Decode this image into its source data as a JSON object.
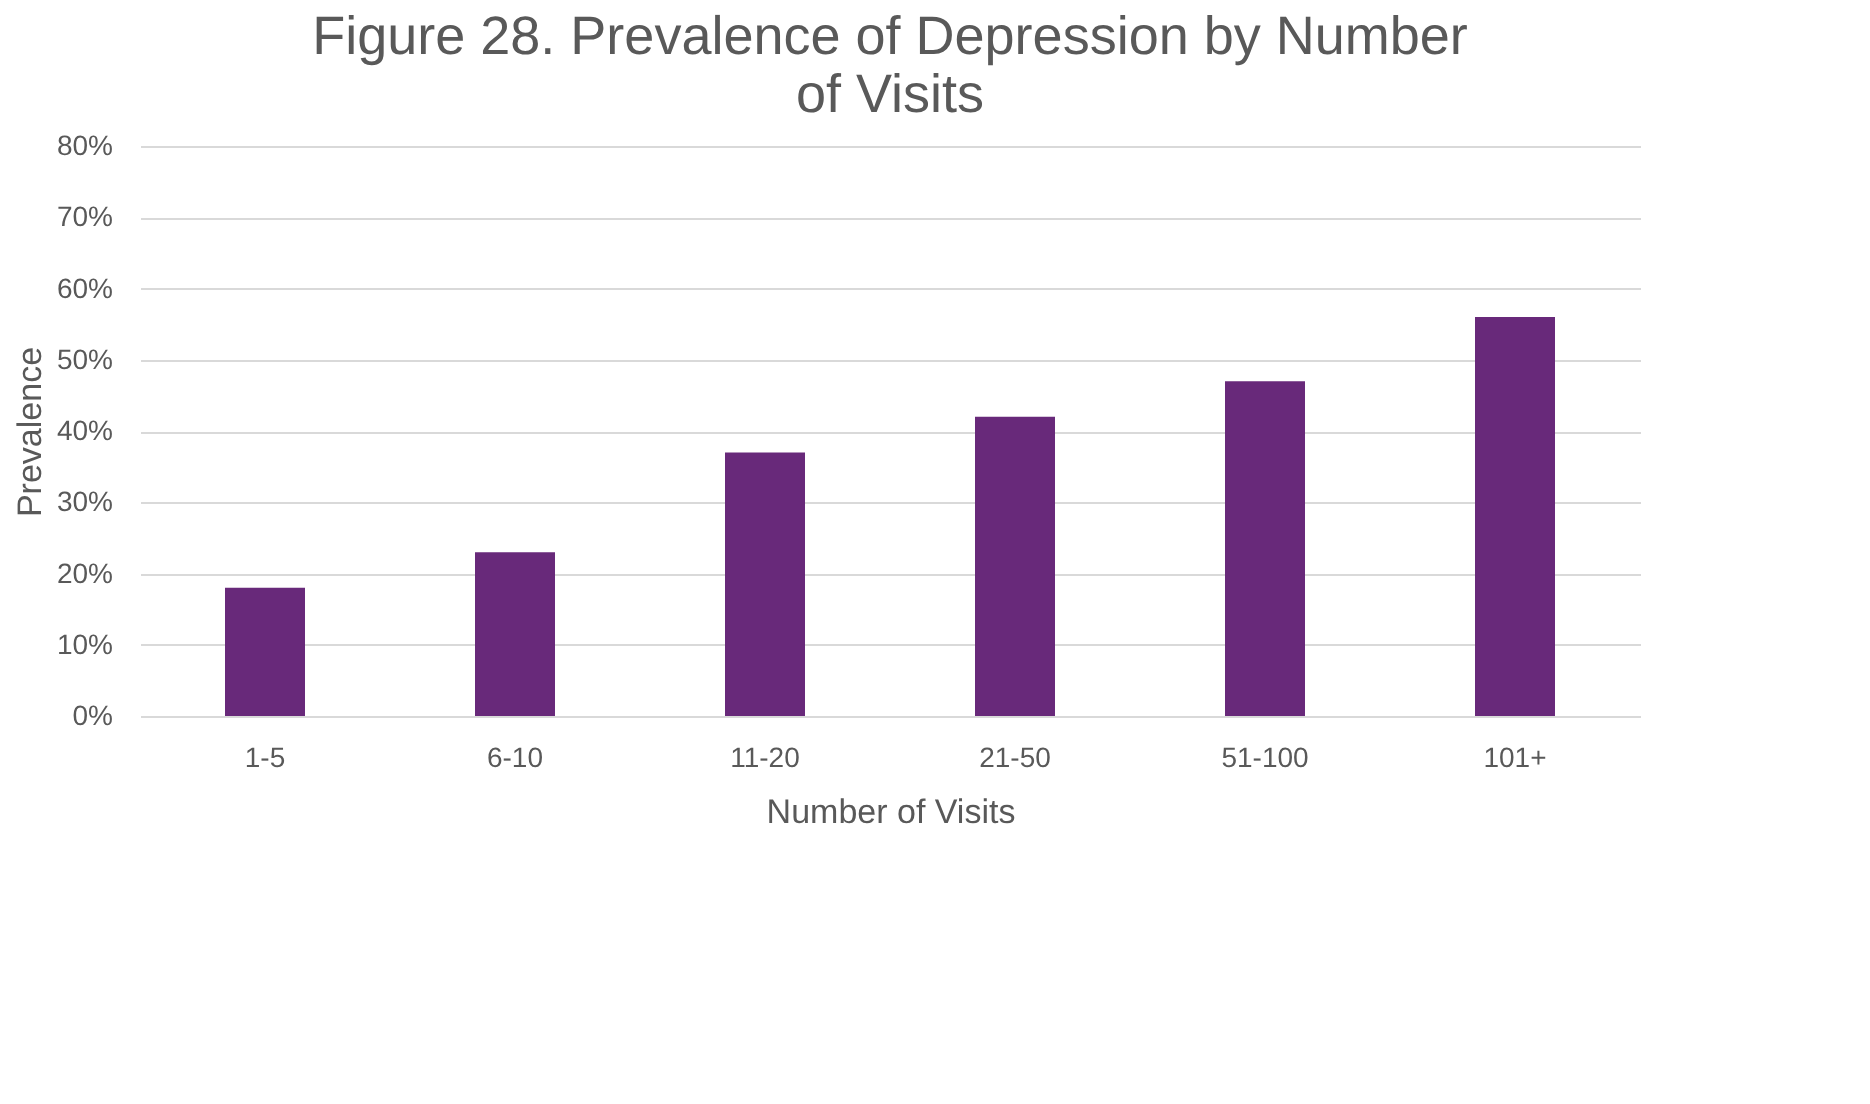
{
  "chart_data": {
    "type": "bar",
    "title": [
      "Figure 28. Prevalence of Depression by Number",
      "of Visits"
    ],
    "xlabel": "Number of Visits",
    "ylabel": "Prevalence",
    "categories": [
      "1-5",
      "6-10",
      "11-20",
      "21-50",
      "51-100",
      "101+"
    ],
    "values": [
      18,
      23,
      37,
      42,
      47,
      56
    ],
    "color": "#68297a",
    "ylim": [
      0,
      80
    ],
    "yticks": [
      {
        "value": 0,
        "label": "0%"
      },
      {
        "value": 10,
        "label": "10%"
      },
      {
        "value": 20,
        "label": "20%"
      },
      {
        "value": 30,
        "label": "30%"
      },
      {
        "value": 40,
        "label": "40%"
      },
      {
        "value": 50,
        "label": "50%"
      },
      {
        "value": 60,
        "label": "60%"
      },
      {
        "value": 70,
        "label": "70%"
      },
      {
        "value": 80,
        "label": "80%"
      }
    ],
    "grid": "y"
  }
}
